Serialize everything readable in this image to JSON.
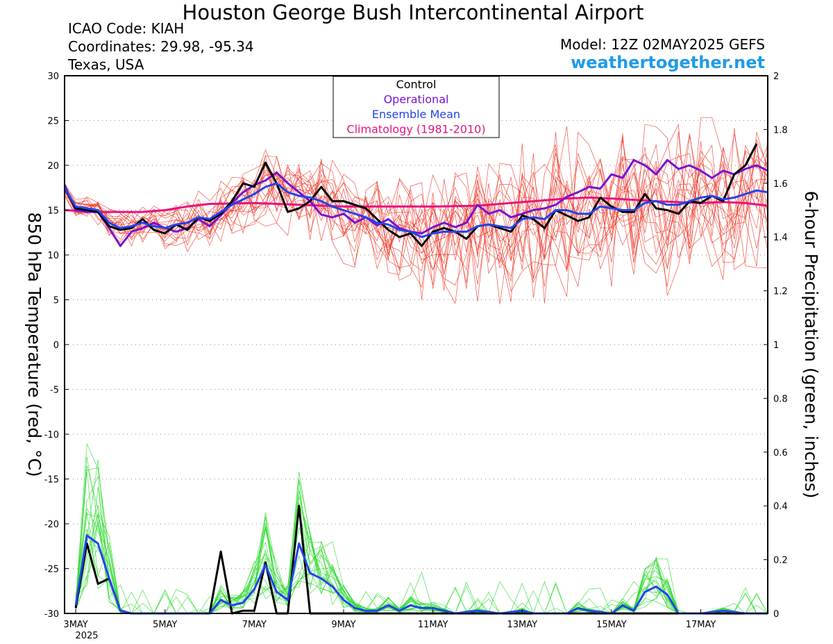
{
  "header": {
    "title": "Houston George Bush Intercontinental Airport",
    "icao": "ICAO Code: KIAH",
    "coordinates": "Coordinates: 29.98, -95.34",
    "region": "Texas, USA",
    "model": "Model: 12Z 02MAY2025 GEFS",
    "site": "weathertogether.net"
  },
  "colors": {
    "control": "#000000",
    "operational": "#7a12d0",
    "ensemble_mean": "#2244ee",
    "climatology": "#e8127d",
    "members_temp": "#ee3a2a",
    "members_precip": "#2ed92e",
    "site_link": "#1e9bea"
  },
  "chart_data": {
    "type": "line",
    "xlabel": "",
    "ylabel": "850 hPa Temperature (red, °C)",
    "y2label": "6-hour Precipitation (green, inches)",
    "ylim": [
      -30,
      30
    ],
    "y2lim": [
      0,
      2
    ],
    "y_ticks": [
      "30",
      "25",
      "20",
      "15",
      "10",
      "5",
      "0",
      "-5",
      "-10",
      "-15",
      "-20",
      "-25",
      "-30"
    ],
    "y2_ticks": [
      "2",
      "1.8",
      "1.6",
      "1.4",
      "1.2",
      "1",
      "0.8",
      "0.6",
      "0.4",
      "0.2",
      "0"
    ],
    "x_ticks": [
      "3MAY",
      "5MAY",
      "7MAY",
      "9MAY",
      "11MAY",
      "13MAY",
      "15MAY",
      "17MAY"
    ],
    "x_tick_days": [
      3,
      5,
      7,
      9,
      11,
      13,
      15,
      17
    ],
    "x_year": "2025",
    "x_range_days": [
      2.75,
      18.5
    ],
    "legend": [
      "Control",
      "Operational",
      "Ensemble Mean",
      "Climatology (1981-2010)"
    ],
    "legend_position": "top-center",
    "grid": "horizontal dotted",
    "series": [
      {
        "name": "Operational",
        "axis": "temperature",
        "points": [
          [
            2.75,
            17.8
          ],
          [
            3.0,
            15.0
          ],
          [
            3.25,
            14.8
          ],
          [
            3.5,
            14.8
          ],
          [
            3.75,
            13.0
          ],
          [
            4.0,
            11.0
          ],
          [
            4.25,
            12.6
          ],
          [
            4.5,
            13.0
          ],
          [
            4.75,
            13.6
          ],
          [
            5.0,
            13.0
          ],
          [
            5.25,
            12.6
          ],
          [
            5.5,
            13.0
          ],
          [
            5.75,
            14.0
          ],
          [
            6.0,
            13.2
          ],
          [
            6.25,
            14.4
          ],
          [
            6.5,
            15.8
          ],
          [
            6.75,
            17.0
          ],
          [
            7.0,
            17.8
          ],
          [
            7.25,
            18.3
          ],
          [
            7.5,
            19.2
          ],
          [
            7.75,
            18.0
          ],
          [
            8.0,
            17.0
          ],
          [
            8.25,
            16.0
          ],
          [
            8.5,
            14.5
          ],
          [
            8.75,
            14.2
          ],
          [
            9.0,
            14.6
          ],
          [
            9.25,
            13.6
          ],
          [
            9.5,
            14.2
          ],
          [
            9.75,
            13.3
          ],
          [
            10.0,
            14.0
          ],
          [
            10.25,
            13.0
          ],
          [
            10.5,
            12.6
          ],
          [
            10.75,
            12.4
          ],
          [
            11.0,
            13.1
          ],
          [
            11.25,
            13.6
          ],
          [
            11.5,
            13.1
          ],
          [
            11.75,
            13.6
          ],
          [
            12.0,
            15.6
          ],
          [
            12.25,
            14.6
          ],
          [
            12.5,
            15.0
          ],
          [
            12.75,
            14.2
          ],
          [
            13.0,
            14.6
          ],
          [
            13.25,
            15.0
          ],
          [
            13.5,
            15.2
          ],
          [
            13.75,
            15.6
          ],
          [
            14.0,
            16.5
          ],
          [
            14.25,
            17.0
          ],
          [
            14.5,
            17.6
          ],
          [
            14.75,
            17.4
          ],
          [
            15.0,
            19.0
          ],
          [
            15.25,
            18.6
          ],
          [
            15.5,
            20.6
          ],
          [
            15.75,
            20.0
          ],
          [
            16.0,
            19.0
          ],
          [
            16.25,
            20.6
          ],
          [
            16.5,
            19.6
          ],
          [
            16.75,
            20.0
          ],
          [
            17.0,
            19.4
          ],
          [
            17.25,
            18.6
          ],
          [
            17.5,
            19.4
          ],
          [
            17.75,
            19.0
          ],
          [
            18.0,
            19.6
          ],
          [
            18.25,
            20.0
          ],
          [
            18.5,
            19.4
          ]
        ]
      },
      {
        "name": "Control",
        "axis": "temperature",
        "points": [
          [
            2.75,
            17.5
          ],
          [
            3.0,
            15.2
          ],
          [
            3.25,
            15.0
          ],
          [
            3.5,
            14.8
          ],
          [
            3.75,
            13.2
          ],
          [
            4.0,
            12.8
          ],
          [
            4.25,
            13.0
          ],
          [
            4.5,
            14.0
          ],
          [
            4.75,
            12.8
          ],
          [
            5.0,
            12.4
          ],
          [
            5.25,
            13.4
          ],
          [
            5.5,
            12.8
          ],
          [
            5.75,
            14.2
          ],
          [
            6.0,
            13.8
          ],
          [
            6.25,
            14.6
          ],
          [
            6.5,
            16.0
          ],
          [
            6.75,
            18.0
          ],
          [
            7.0,
            17.6
          ],
          [
            7.25,
            20.3
          ],
          [
            7.5,
            18.0
          ],
          [
            7.75,
            14.8
          ],
          [
            8.0,
            15.2
          ],
          [
            8.25,
            16.0
          ],
          [
            8.5,
            17.6
          ],
          [
            8.75,
            16.0
          ],
          [
            9.0,
            16.0
          ],
          [
            9.25,
            15.6
          ],
          [
            9.5,
            15.2
          ],
          [
            9.75,
            14.0
          ],
          [
            10.0,
            12.8
          ],
          [
            10.25,
            12.0
          ],
          [
            10.5,
            12.4
          ],
          [
            10.75,
            11.0
          ],
          [
            11.0,
            12.6
          ],
          [
            11.25,
            13.0
          ],
          [
            11.5,
            12.6
          ],
          [
            11.75,
            11.8
          ],
          [
            12.0,
            13.2
          ],
          [
            12.25,
            13.4
          ],
          [
            12.5,
            13.0
          ],
          [
            12.75,
            12.6
          ],
          [
            13.0,
            14.4
          ],
          [
            13.25,
            14.0
          ],
          [
            13.5,
            13.0
          ],
          [
            13.75,
            15.0
          ],
          [
            14.0,
            14.4
          ],
          [
            14.25,
            13.8
          ],
          [
            14.5,
            14.2
          ],
          [
            14.75,
            16.4
          ],
          [
            15.0,
            15.4
          ],
          [
            15.25,
            14.8
          ],
          [
            15.5,
            14.8
          ],
          [
            15.75,
            16.8
          ],
          [
            16.0,
            15.2
          ],
          [
            16.25,
            15.0
          ],
          [
            16.5,
            14.6
          ],
          [
            16.75,
            16.0
          ],
          [
            17.0,
            15.8
          ],
          [
            17.25,
            16.6
          ],
          [
            17.5,
            16.0
          ],
          [
            17.75,
            19.0
          ],
          [
            18.0,
            20.0
          ],
          [
            18.25,
            22.4
          ]
        ]
      },
      {
        "name": "Ensemble Mean",
        "axis": "temperature",
        "points": [
          [
            2.75,
            17.5
          ],
          [
            3.0,
            15.4
          ],
          [
            3.25,
            15.2
          ],
          [
            3.5,
            15.0
          ],
          [
            3.75,
            13.6
          ],
          [
            4.0,
            13.0
          ],
          [
            4.25,
            13.2
          ],
          [
            4.5,
            13.6
          ],
          [
            4.75,
            13.2
          ],
          [
            5.0,
            13.0
          ],
          [
            5.25,
            13.4
          ],
          [
            5.5,
            13.6
          ],
          [
            5.75,
            14.2
          ],
          [
            6.0,
            14.0
          ],
          [
            6.25,
            14.8
          ],
          [
            6.5,
            15.6
          ],
          [
            6.75,
            16.2
          ],
          [
            7.0,
            16.8
          ],
          [
            7.25,
            17.6
          ],
          [
            7.5,
            18.0
          ],
          [
            7.75,
            17.0
          ],
          [
            8.0,
            16.6
          ],
          [
            8.25,
            16.4
          ],
          [
            8.5,
            16.0
          ],
          [
            8.75,
            15.4
          ],
          [
            9.0,
            15.0
          ],
          [
            9.25,
            14.6
          ],
          [
            9.5,
            14.2
          ],
          [
            9.75,
            13.6
          ],
          [
            10.0,
            13.4
          ],
          [
            10.25,
            12.8
          ],
          [
            10.5,
            12.6
          ],
          [
            10.75,
            12.0
          ],
          [
            11.0,
            12.4
          ],
          [
            11.25,
            12.6
          ],
          [
            11.5,
            12.6
          ],
          [
            11.75,
            12.6
          ],
          [
            12.0,
            13.2
          ],
          [
            12.25,
            13.4
          ],
          [
            12.5,
            13.2
          ],
          [
            12.75,
            13.0
          ],
          [
            13.0,
            14.0
          ],
          [
            13.25,
            14.2
          ],
          [
            13.5,
            14.0
          ],
          [
            13.75,
            15.0
          ],
          [
            14.0,
            15.0
          ],
          [
            14.25,
            14.6
          ],
          [
            14.5,
            14.6
          ],
          [
            14.75,
            15.4
          ],
          [
            15.0,
            15.2
          ],
          [
            15.25,
            15.0
          ],
          [
            15.5,
            15.0
          ],
          [
            15.75,
            15.8
          ],
          [
            16.0,
            16.0
          ],
          [
            16.25,
            15.6
          ],
          [
            16.5,
            15.6
          ],
          [
            16.75,
            16.0
          ],
          [
            17.0,
            16.4
          ],
          [
            17.25,
            16.6
          ],
          [
            17.5,
            16.2
          ],
          [
            17.75,
            16.4
          ],
          [
            18.0,
            16.8
          ],
          [
            18.25,
            17.2
          ],
          [
            18.5,
            17.0
          ]
        ]
      },
      {
        "name": "Climatology (1981-2010)",
        "axis": "temperature",
        "points": [
          [
            2.75,
            15.0
          ],
          [
            3.5,
            14.8
          ],
          [
            4.5,
            14.8
          ],
          [
            5.0,
            15.0
          ],
          [
            5.5,
            15.4
          ],
          [
            6.0,
            15.7
          ],
          [
            7.0,
            15.8
          ],
          [
            8.0,
            15.6
          ],
          [
            9.0,
            15.4
          ],
          [
            10.0,
            15.4
          ],
          [
            11.0,
            15.4
          ],
          [
            12.0,
            15.5
          ],
          [
            13.0,
            15.9
          ],
          [
            14.0,
            16.3
          ],
          [
            14.5,
            16.4
          ],
          [
            15.0,
            16.3
          ],
          [
            16.0,
            16.0
          ],
          [
            17.0,
            15.8
          ],
          [
            17.5,
            15.9
          ],
          [
            18.0,
            15.8
          ],
          [
            18.5,
            15.5
          ]
        ]
      },
      {
        "name": "Control",
        "axis": "precipitation",
        "points": [
          [
            3.0,
            0.02
          ],
          [
            3.25,
            0.26
          ],
          [
            3.5,
            0.11
          ],
          [
            3.75,
            0.13
          ],
          [
            4.0,
            0.01
          ],
          [
            4.25,
            0.0
          ],
          [
            6.0,
            0.0
          ],
          [
            6.25,
            0.23
          ],
          [
            6.5,
            0.0
          ],
          [
            6.75,
            0.01
          ],
          [
            7.0,
            0.01
          ],
          [
            7.25,
            0.19
          ],
          [
            7.5,
            0.0
          ],
          [
            7.75,
            0.0
          ],
          [
            8.0,
            0.4
          ],
          [
            8.25,
            0.0
          ],
          [
            18.5,
            0.0
          ]
        ]
      },
      {
        "name": "Ensemble Mean",
        "axis": "precipitation",
        "points": [
          [
            3.0,
            0.03
          ],
          [
            3.25,
            0.29
          ],
          [
            3.5,
            0.26
          ],
          [
            3.75,
            0.13
          ],
          [
            4.0,
            0.01
          ],
          [
            4.25,
            0.0
          ],
          [
            6.0,
            0.0
          ],
          [
            6.25,
            0.05
          ],
          [
            6.5,
            0.03
          ],
          [
            6.75,
            0.04
          ],
          [
            7.0,
            0.09
          ],
          [
            7.25,
            0.18
          ],
          [
            7.5,
            0.08
          ],
          [
            7.75,
            0.05
          ],
          [
            8.0,
            0.26
          ],
          [
            8.25,
            0.15
          ],
          [
            8.5,
            0.13
          ],
          [
            8.75,
            0.1
          ],
          [
            9.0,
            0.05
          ],
          [
            9.25,
            0.02
          ],
          [
            9.5,
            0.01
          ],
          [
            9.75,
            0.01
          ],
          [
            10.0,
            0.03
          ],
          [
            10.25,
            0.01
          ],
          [
            10.5,
            0.03
          ],
          [
            10.75,
            0.02
          ],
          [
            11.0,
            0.02
          ],
          [
            11.25,
            0.01
          ],
          [
            11.5,
            0.0
          ],
          [
            12.0,
            0.01
          ],
          [
            12.5,
            0.0
          ],
          [
            13.0,
            0.01
          ],
          [
            13.25,
            0.0
          ],
          [
            14.0,
            0.0
          ],
          [
            14.25,
            0.02
          ],
          [
            14.5,
            0.01
          ],
          [
            15.0,
            0.0
          ],
          [
            15.25,
            0.03
          ],
          [
            15.5,
            0.01
          ],
          [
            15.75,
            0.08
          ],
          [
            16.0,
            0.1
          ],
          [
            16.25,
            0.07
          ],
          [
            16.5,
            0.0
          ],
          [
            17.0,
            0.0
          ],
          [
            17.5,
            0.01
          ],
          [
            18.0,
            0.0
          ],
          [
            18.5,
            0.0
          ]
        ]
      }
    ]
  }
}
